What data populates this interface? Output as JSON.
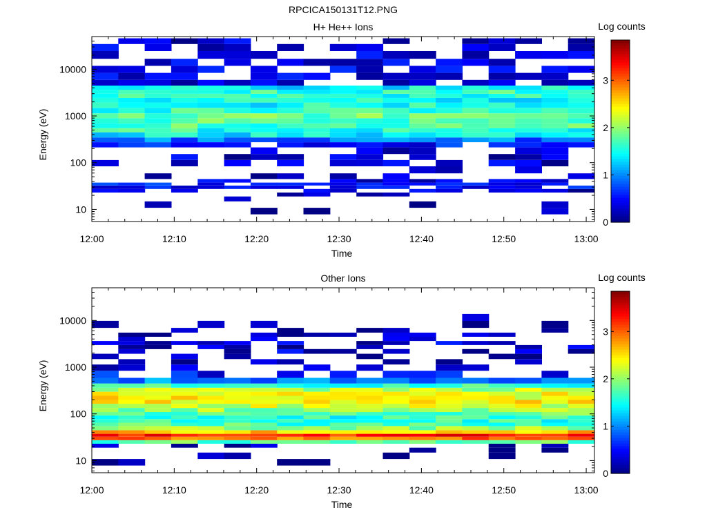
{
  "figure": {
    "title": "RPCICA150131T12.PNG"
  },
  "chart_data": [
    {
      "type": "heatmap",
      "title": "H+ He++ Ions",
      "xlabel": "Time",
      "ylabel": "Energy (eV)",
      "x_ticks": [
        "12:00",
        "12:10",
        "12:20",
        "12:30",
        "12:40",
        "12:50",
        "13:00"
      ],
      "x_range": [
        "12:00",
        "13:01"
      ],
      "y_scale": "log",
      "y_range": [
        5.5,
        50000
      ],
      "y_ticks": [
        10,
        100,
        1000,
        10000
      ],
      "y_tick_labels": [
        "10",
        "100",
        "1000",
        "10000"
      ],
      "colorbar": {
        "label": "Log counts",
        "range": [
          0,
          3.85
        ],
        "ticks": [
          "0",
          "1",
          "2",
          "3"
        ],
        "colormap": "jet"
      },
      "time_bins": 19,
      "profile": {
        "energy_eV": [
          9,
          13,
          17,
          21,
          25,
          30,
          35,
          40,
          50,
          70,
          100,
          130,
          180,
          250,
          300,
          400,
          500,
          600,
          800,
          1000,
          1300,
          1700,
          2200,
          2700,
          3300,
          4000,
          5000,
          7000,
          10000,
          14000,
          20000,
          30000,
          40000
        ],
        "log_counts": [
          0.05,
          0.05,
          0.1,
          0.1,
          0.3,
          0.55,
          0.5,
          0.35,
          0.2,
          0.2,
          0.3,
          0.3,
          0.25,
          0.55,
          0.9,
          1.4,
          1.6,
          1.7,
          1.8,
          1.8,
          1.6,
          1.5,
          1.5,
          1.6,
          1.6,
          1.4,
          0.4,
          0.4,
          0.4,
          0.4,
          0.4,
          0.35,
          0.3
        ],
        "coverage": [
          0.12,
          0.08,
          0.12,
          0.12,
          0.35,
          0.8,
          0.7,
          0.45,
          0.3,
          0.35,
          0.55,
          0.4,
          0.35,
          0.75,
          1,
          1,
          1,
          1,
          1,
          1,
          1,
          1,
          1,
          1,
          1,
          1,
          0.75,
          0.7,
          0.7,
          0.65,
          0.6,
          0.5,
          0.45
        ]
      }
    },
    {
      "type": "heatmap",
      "title": "Other Ions",
      "xlabel": "Time",
      "ylabel": "Energy (eV)",
      "x_ticks": [
        "12:00",
        "12:10",
        "12:20",
        "12:30",
        "12:40",
        "12:50",
        "13:00"
      ],
      "x_range": [
        "12:00",
        "13:01"
      ],
      "y_scale": "log",
      "y_range": [
        5.5,
        50000
      ],
      "y_ticks": [
        10,
        100,
        1000,
        10000
      ],
      "y_tick_labels": [
        "10",
        "100",
        "1000",
        "10000"
      ],
      "colorbar": {
        "label": "Log counts",
        "range": [
          0,
          3.85
        ],
        "ticks": [
          "0",
          "1",
          "2",
          "3"
        ],
        "colormap": "jet"
      },
      "time_bins": 19,
      "profile": {
        "energy_eV": [
          9,
          13,
          17,
          21,
          25,
          30,
          35,
          40,
          50,
          60,
          70,
          85,
          100,
          120,
          150,
          180,
          220,
          270,
          330,
          400,
          500,
          700,
          1000,
          1300,
          1700,
          2200,
          2700,
          3300,
          4000,
          5000,
          6000,
          8000,
          12000
        ],
        "log_counts": [
          0.05,
          0.05,
          0.05,
          0.2,
          1.8,
          3.0,
          3.3,
          2.6,
          2.0,
          1.7,
          1.6,
          1.6,
          1.8,
          2.0,
          2.2,
          2.4,
          2.4,
          2.3,
          2.1,
          1.6,
          1.0,
          0.5,
          0.2,
          0.15,
          0.15,
          0.3,
          0.3,
          0.3,
          0.2,
          0.2,
          0.15,
          0.15,
          0.1
        ],
        "coverage": [
          0.25,
          0.2,
          0.15,
          0.45,
          1,
          1,
          1,
          1,
          1,
          1,
          1,
          1,
          1,
          1,
          1,
          1,
          1,
          1,
          1,
          1,
          0.95,
          0.65,
          0.4,
          0.25,
          0.2,
          0.5,
          0.55,
          0.6,
          0.3,
          0.35,
          0.25,
          0.15,
          0.1
        ]
      }
    }
  ]
}
